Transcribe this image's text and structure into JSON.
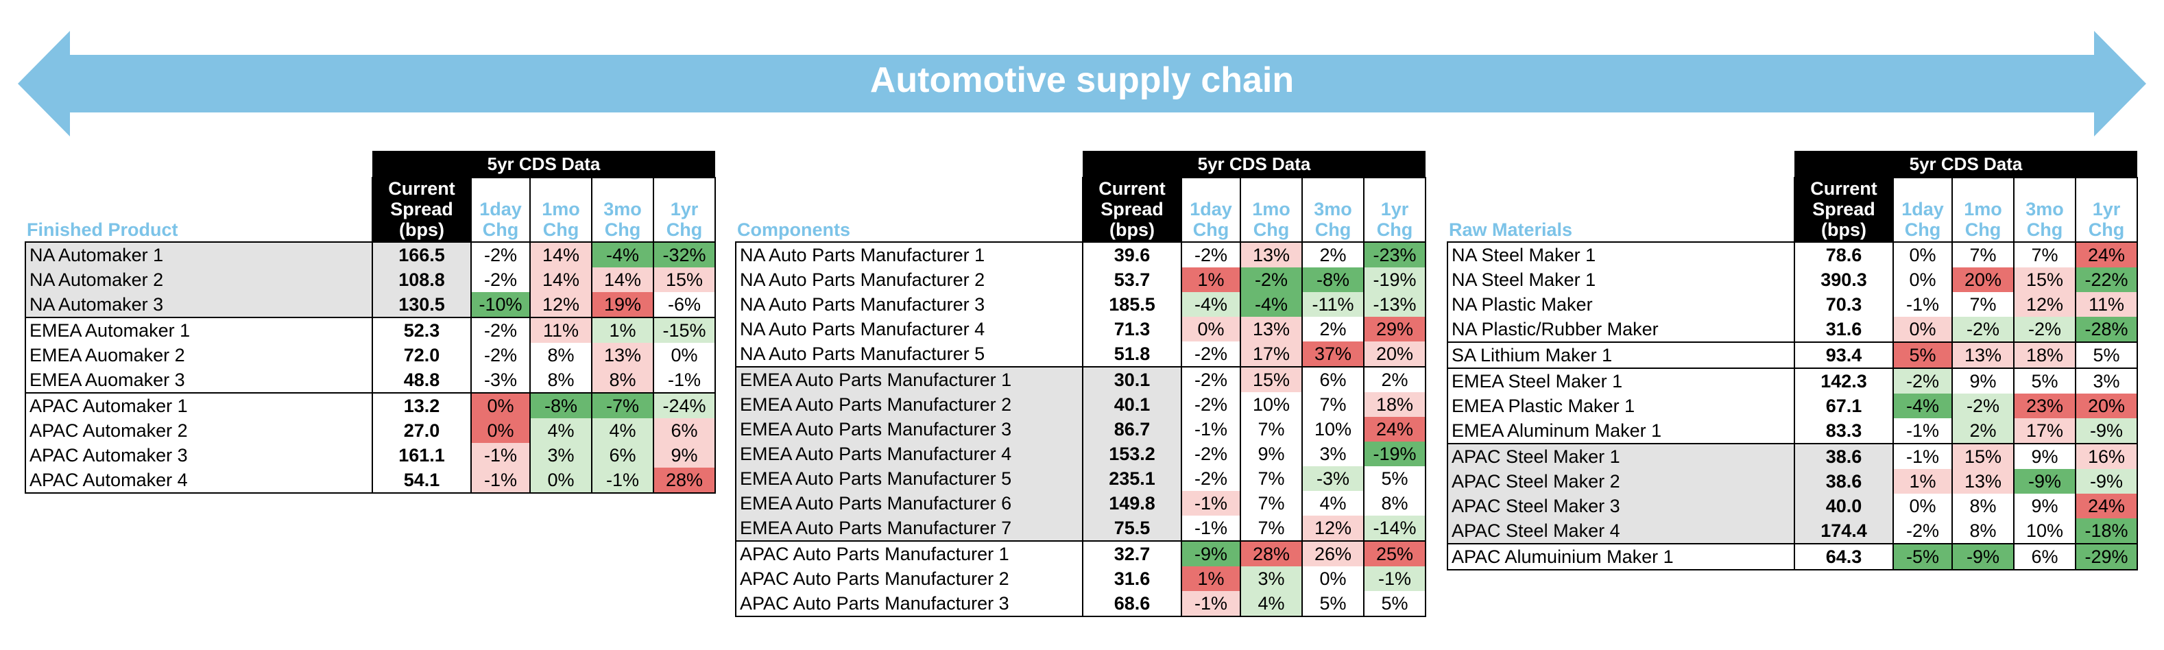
{
  "banner": {
    "title": "Automotive supply chain",
    "color": "#82c2e4"
  },
  "group_header": "5yr CDS Data",
  "columns": {
    "spread": "Current Spread (bps)",
    "d1": "1day Chg",
    "m1": "1mo Chg",
    "m3": "3mo Chg",
    "y1": "1yr Chg"
  },
  "colors": {
    "strong_red": "#e8716f",
    "light_red": "#f9d3d1",
    "strong_green": "#69b870",
    "light_green": "#d3ebd0",
    "gray_band": "#e3e3e3",
    "header_blue": "#7cc3e8"
  },
  "panels": [
    {
      "id": "finished-product",
      "section_label": "Finished Product",
      "rows": [
        {
          "name": "NA Automaker 1",
          "spread": "166.5",
          "d1": "-2%",
          "d1c": "",
          "m1": "14%",
          "m1c": "r",
          "m3": "-4%",
          "m3c": "G",
          "y1": "-32%",
          "y1c": "G",
          "band": true,
          "sep": false
        },
        {
          "name": "NA Automaker 2",
          "spread": "108.8",
          "d1": "-2%",
          "d1c": "",
          "m1": "14%",
          "m1c": "r",
          "m3": "14%",
          "m3c": "r",
          "y1": "15%",
          "y1c": "r",
          "band": true,
          "sep": false
        },
        {
          "name": "NA Automaker 3",
          "spread": "130.5",
          "d1": "-10%",
          "d1c": "G",
          "m1": "12%",
          "m1c": "r",
          "m3": "19%",
          "m3c": "R",
          "y1": "-6%",
          "y1c": "",
          "band": true,
          "sep": false
        },
        {
          "name": "EMEA Automaker 1",
          "spread": "52.3",
          "d1": "-2%",
          "d1c": "",
          "m1": "11%",
          "m1c": "r",
          "m3": "1%",
          "m3c": "g",
          "y1": "-15%",
          "y1c": "g",
          "band": false,
          "sep": true
        },
        {
          "name": "EMEA Auomaker 2",
          "spread": "72.0",
          "d1": "-2%",
          "d1c": "",
          "m1": "8%",
          "m1c": "",
          "m3": "13%",
          "m3c": "r",
          "y1": "0%",
          "y1c": "",
          "band": false,
          "sep": false
        },
        {
          "name": "EMEA Auomaker 3",
          "spread": "48.8",
          "d1": "-3%",
          "d1c": "",
          "m1": "8%",
          "m1c": "",
          "m3": "8%",
          "m3c": "r",
          "y1": "-1%",
          "y1c": "",
          "band": false,
          "sep": false
        },
        {
          "name": "APAC Automaker 1",
          "spread": "13.2",
          "d1": "0%",
          "d1c": "R",
          "m1": "-8%",
          "m1c": "G",
          "m3": "-7%",
          "m3c": "G",
          "y1": "-24%",
          "y1c": "g",
          "band": false,
          "sep": true
        },
        {
          "name": "APAC Automaker 2",
          "spread": "27.0",
          "d1": "0%",
          "d1c": "R",
          "m1": "4%",
          "m1c": "g",
          "m3": "4%",
          "m3c": "g",
          "y1": "6%",
          "y1c": "r",
          "band": false,
          "sep": false
        },
        {
          "name": "APAC Automaker 3",
          "spread": "161.1",
          "d1": "-1%",
          "d1c": "r",
          "m1": "3%",
          "m1c": "g",
          "m3": "6%",
          "m3c": "g",
          "y1": "9%",
          "y1c": "r",
          "band": false,
          "sep": false
        },
        {
          "name": "APAC Automaker 4",
          "spread": "54.1",
          "d1": "-1%",
          "d1c": "r",
          "m1": "0%",
          "m1c": "g",
          "m3": "-1%",
          "m3c": "g",
          "y1": "28%",
          "y1c": "R",
          "band": false,
          "sep": false
        }
      ]
    },
    {
      "id": "components",
      "section_label": "Components",
      "rows": [
        {
          "name": "NA Auto Parts Manufacturer 1",
          "spread": "39.6",
          "d1": "-2%",
          "d1c": "",
          "m1": "13%",
          "m1c": "r",
          "m3": "2%",
          "m3c": "",
          "y1": "-23%",
          "y1c": "G",
          "band": false,
          "sep": false
        },
        {
          "name": "NA Auto Parts Manufacturer 2",
          "spread": "53.7",
          "d1": "1%",
          "d1c": "R",
          "m1": "-2%",
          "m1c": "G",
          "m3": "-8%",
          "m3c": "G",
          "y1": "-19%",
          "y1c": "g",
          "band": false,
          "sep": false
        },
        {
          "name": "NA Auto Parts Manufacturer 3",
          "spread": "185.5",
          "d1": "-4%",
          "d1c": "g",
          "m1": "-4%",
          "m1c": "G",
          "m3": "-11%",
          "m3c": "g",
          "y1": "-13%",
          "y1c": "g",
          "band": false,
          "sep": false
        },
        {
          "name": "NA Auto Parts Manufacturer 4",
          "spread": "71.3",
          "d1": "0%",
          "d1c": "r",
          "m1": "13%",
          "m1c": "r",
          "m3": "2%",
          "m3c": "",
          "y1": "29%",
          "y1c": "R",
          "band": false,
          "sep": false
        },
        {
          "name": "NA Auto Parts Manufacturer 5",
          "spread": "51.8",
          "d1": "-2%",
          "d1c": "",
          "m1": "17%",
          "m1c": "r",
          "m3": "37%",
          "m3c": "R",
          "y1": "20%",
          "y1c": "r",
          "band": false,
          "sep": false
        },
        {
          "name": "EMEA Auto Parts Manufacturer 1",
          "spread": "30.1",
          "d1": "-2%",
          "d1c": "",
          "m1": "15%",
          "m1c": "r",
          "m3": "6%",
          "m3c": "",
          "y1": "2%",
          "y1c": "",
          "band": true,
          "sep": true
        },
        {
          "name": "EMEA Auto Parts Manufacturer 2",
          "spread": "40.1",
          "d1": "-2%",
          "d1c": "",
          "m1": "10%",
          "m1c": "",
          "m3": "7%",
          "m3c": "",
          "y1": "18%",
          "y1c": "r",
          "band": true,
          "sep": false
        },
        {
          "name": "EMEA Auto Parts Manufacturer 3",
          "spread": "86.7",
          "d1": "-1%",
          "d1c": "",
          "m1": "7%",
          "m1c": "",
          "m3": "10%",
          "m3c": "",
          "y1": "24%",
          "y1c": "R",
          "band": true,
          "sep": false
        },
        {
          "name": "EMEA Auto Parts Manufacturer 4",
          "spread": "153.2",
          "d1": "-2%",
          "d1c": "",
          "m1": "9%",
          "m1c": "",
          "m3": "3%",
          "m3c": "",
          "y1": "-19%",
          "y1c": "G",
          "band": true,
          "sep": false
        },
        {
          "name": "EMEA Auto Parts Manufacturer 5",
          "spread": "235.1",
          "d1": "-2%",
          "d1c": "",
          "m1": "7%",
          "m1c": "",
          "m3": "-3%",
          "m3c": "g",
          "y1": "5%",
          "y1c": "",
          "band": true,
          "sep": false
        },
        {
          "name": "EMEA Auto Parts Manufacturer 6",
          "spread": "149.8",
          "d1": "-1%",
          "d1c": "r",
          "m1": "7%",
          "m1c": "",
          "m3": "4%",
          "m3c": "",
          "y1": "8%",
          "y1c": "",
          "band": true,
          "sep": false
        },
        {
          "name": "EMEA Auto Parts Manufacturer 7",
          "spread": "75.5",
          "d1": "-1%",
          "d1c": "",
          "m1": "7%",
          "m1c": "",
          "m3": "12%",
          "m3c": "r",
          "y1": "-14%",
          "y1c": "g",
          "band": true,
          "sep": false
        },
        {
          "name": "APAC Auto Parts Manufacturer 1",
          "spread": "32.7",
          "d1": "-9%",
          "d1c": "G",
          "m1": "28%",
          "m1c": "R",
          "m3": "26%",
          "m3c": "r",
          "y1": "25%",
          "y1c": "R",
          "band": false,
          "sep": true
        },
        {
          "name": "APAC Auto Parts Manufacturer 2",
          "spread": "31.6",
          "d1": "1%",
          "d1c": "R",
          "m1": "3%",
          "m1c": "g",
          "m3": "0%",
          "m3c": "",
          "y1": "-1%",
          "y1c": "g",
          "band": false,
          "sep": false
        },
        {
          "name": "APAC Auto Parts Manufacturer 3",
          "spread": "68.6",
          "d1": "-1%",
          "d1c": "r",
          "m1": "4%",
          "m1c": "g",
          "m3": "5%",
          "m3c": "",
          "y1": "5%",
          "y1c": "",
          "band": false,
          "sep": false
        }
      ]
    },
    {
      "id": "raw-materials",
      "section_label": "Raw Materials",
      "rows": [
        {
          "name": "NA Steel Maker 1",
          "spread": "78.6",
          "d1": "0%",
          "d1c": "",
          "m1": "7%",
          "m1c": "",
          "m3": "7%",
          "m3c": "",
          "y1": "24%",
          "y1c": "R",
          "band": false,
          "sep": false
        },
        {
          "name": "NA Steel Maker 1",
          "spread": "390.3",
          "d1": "0%",
          "d1c": "",
          "m1": "20%",
          "m1c": "R",
          "m3": "15%",
          "m3c": "r",
          "y1": "-22%",
          "y1c": "G",
          "band": false,
          "sep": false
        },
        {
          "name": "NA Plastic Maker",
          "spread": "70.3",
          "d1": "-1%",
          "d1c": "",
          "m1": "7%",
          "m1c": "",
          "m3": "12%",
          "m3c": "r",
          "y1": "11%",
          "y1c": "r",
          "band": false,
          "sep": false
        },
        {
          "name": "NA Plastic/Rubber Maker",
          "spread": "31.6",
          "d1": "0%",
          "d1c": "r",
          "m1": "-2%",
          "m1c": "g",
          "m3": "-2%",
          "m3c": "g",
          "y1": "-28%",
          "y1c": "G",
          "band": false,
          "sep": false
        },
        {
          "name": "SA Lithium Maker 1",
          "spread": "93.4",
          "d1": "5%",
          "d1c": "R",
          "m1": "13%",
          "m1c": "r",
          "m3": "18%",
          "m3c": "r",
          "y1": "5%",
          "y1c": "",
          "band": false,
          "sep": true
        },
        {
          "name": "EMEA Steel Maker 1",
          "spread": "142.3",
          "d1": "-2%",
          "d1c": "g",
          "m1": "9%",
          "m1c": "",
          "m3": "5%",
          "m3c": "",
          "y1": "3%",
          "y1c": "",
          "band": false,
          "sep": true
        },
        {
          "name": "EMEA Plastic Maker 1",
          "spread": "67.1",
          "d1": "-4%",
          "d1c": "G",
          "m1": "-2%",
          "m1c": "g",
          "m3": "23%",
          "m3c": "R",
          "y1": "20%",
          "y1c": "R",
          "band": false,
          "sep": false
        },
        {
          "name": "EMEA Aluminum Maker 1",
          "spread": "83.3",
          "d1": "-1%",
          "d1c": "",
          "m1": "2%",
          "m1c": "g",
          "m3": "17%",
          "m3c": "r",
          "y1": "-9%",
          "y1c": "g",
          "band": false,
          "sep": false
        },
        {
          "name": "APAC Steel Maker 1",
          "spread": "38.6",
          "d1": "-1%",
          "d1c": "",
          "m1": "15%",
          "m1c": "r",
          "m3": "9%",
          "m3c": "",
          "y1": "16%",
          "y1c": "r",
          "band": true,
          "sep": true
        },
        {
          "name": "APAC Steel Maker 2",
          "spread": "38.6",
          "d1": "1%",
          "d1c": "r",
          "m1": "13%",
          "m1c": "r",
          "m3": "-9%",
          "m3c": "G",
          "y1": "-9%",
          "y1c": "g",
          "band": true,
          "sep": false
        },
        {
          "name": "APAC Steel Maker 3",
          "spread": "40.0",
          "d1": "0%",
          "d1c": "",
          "m1": "8%",
          "m1c": "",
          "m3": "9%",
          "m3c": "",
          "y1": "24%",
          "y1c": "R",
          "band": true,
          "sep": false
        },
        {
          "name": "APAC Steel Maker 4",
          "spread": "174.4",
          "d1": "-2%",
          "d1c": "",
          "m1": "8%",
          "m1c": "",
          "m3": "10%",
          "m3c": "",
          "y1": "-18%",
          "y1c": "G",
          "band": true,
          "sep": false
        },
        {
          "name": "APAC Alumuinium Maker 1",
          "spread": "64.3",
          "d1": "-5%",
          "d1c": "G",
          "m1": "-9%",
          "m1c": "G",
          "m3": "6%",
          "m3c": "",
          "y1": "-29%",
          "y1c": "G",
          "band": false,
          "sep": true
        }
      ]
    }
  ]
}
